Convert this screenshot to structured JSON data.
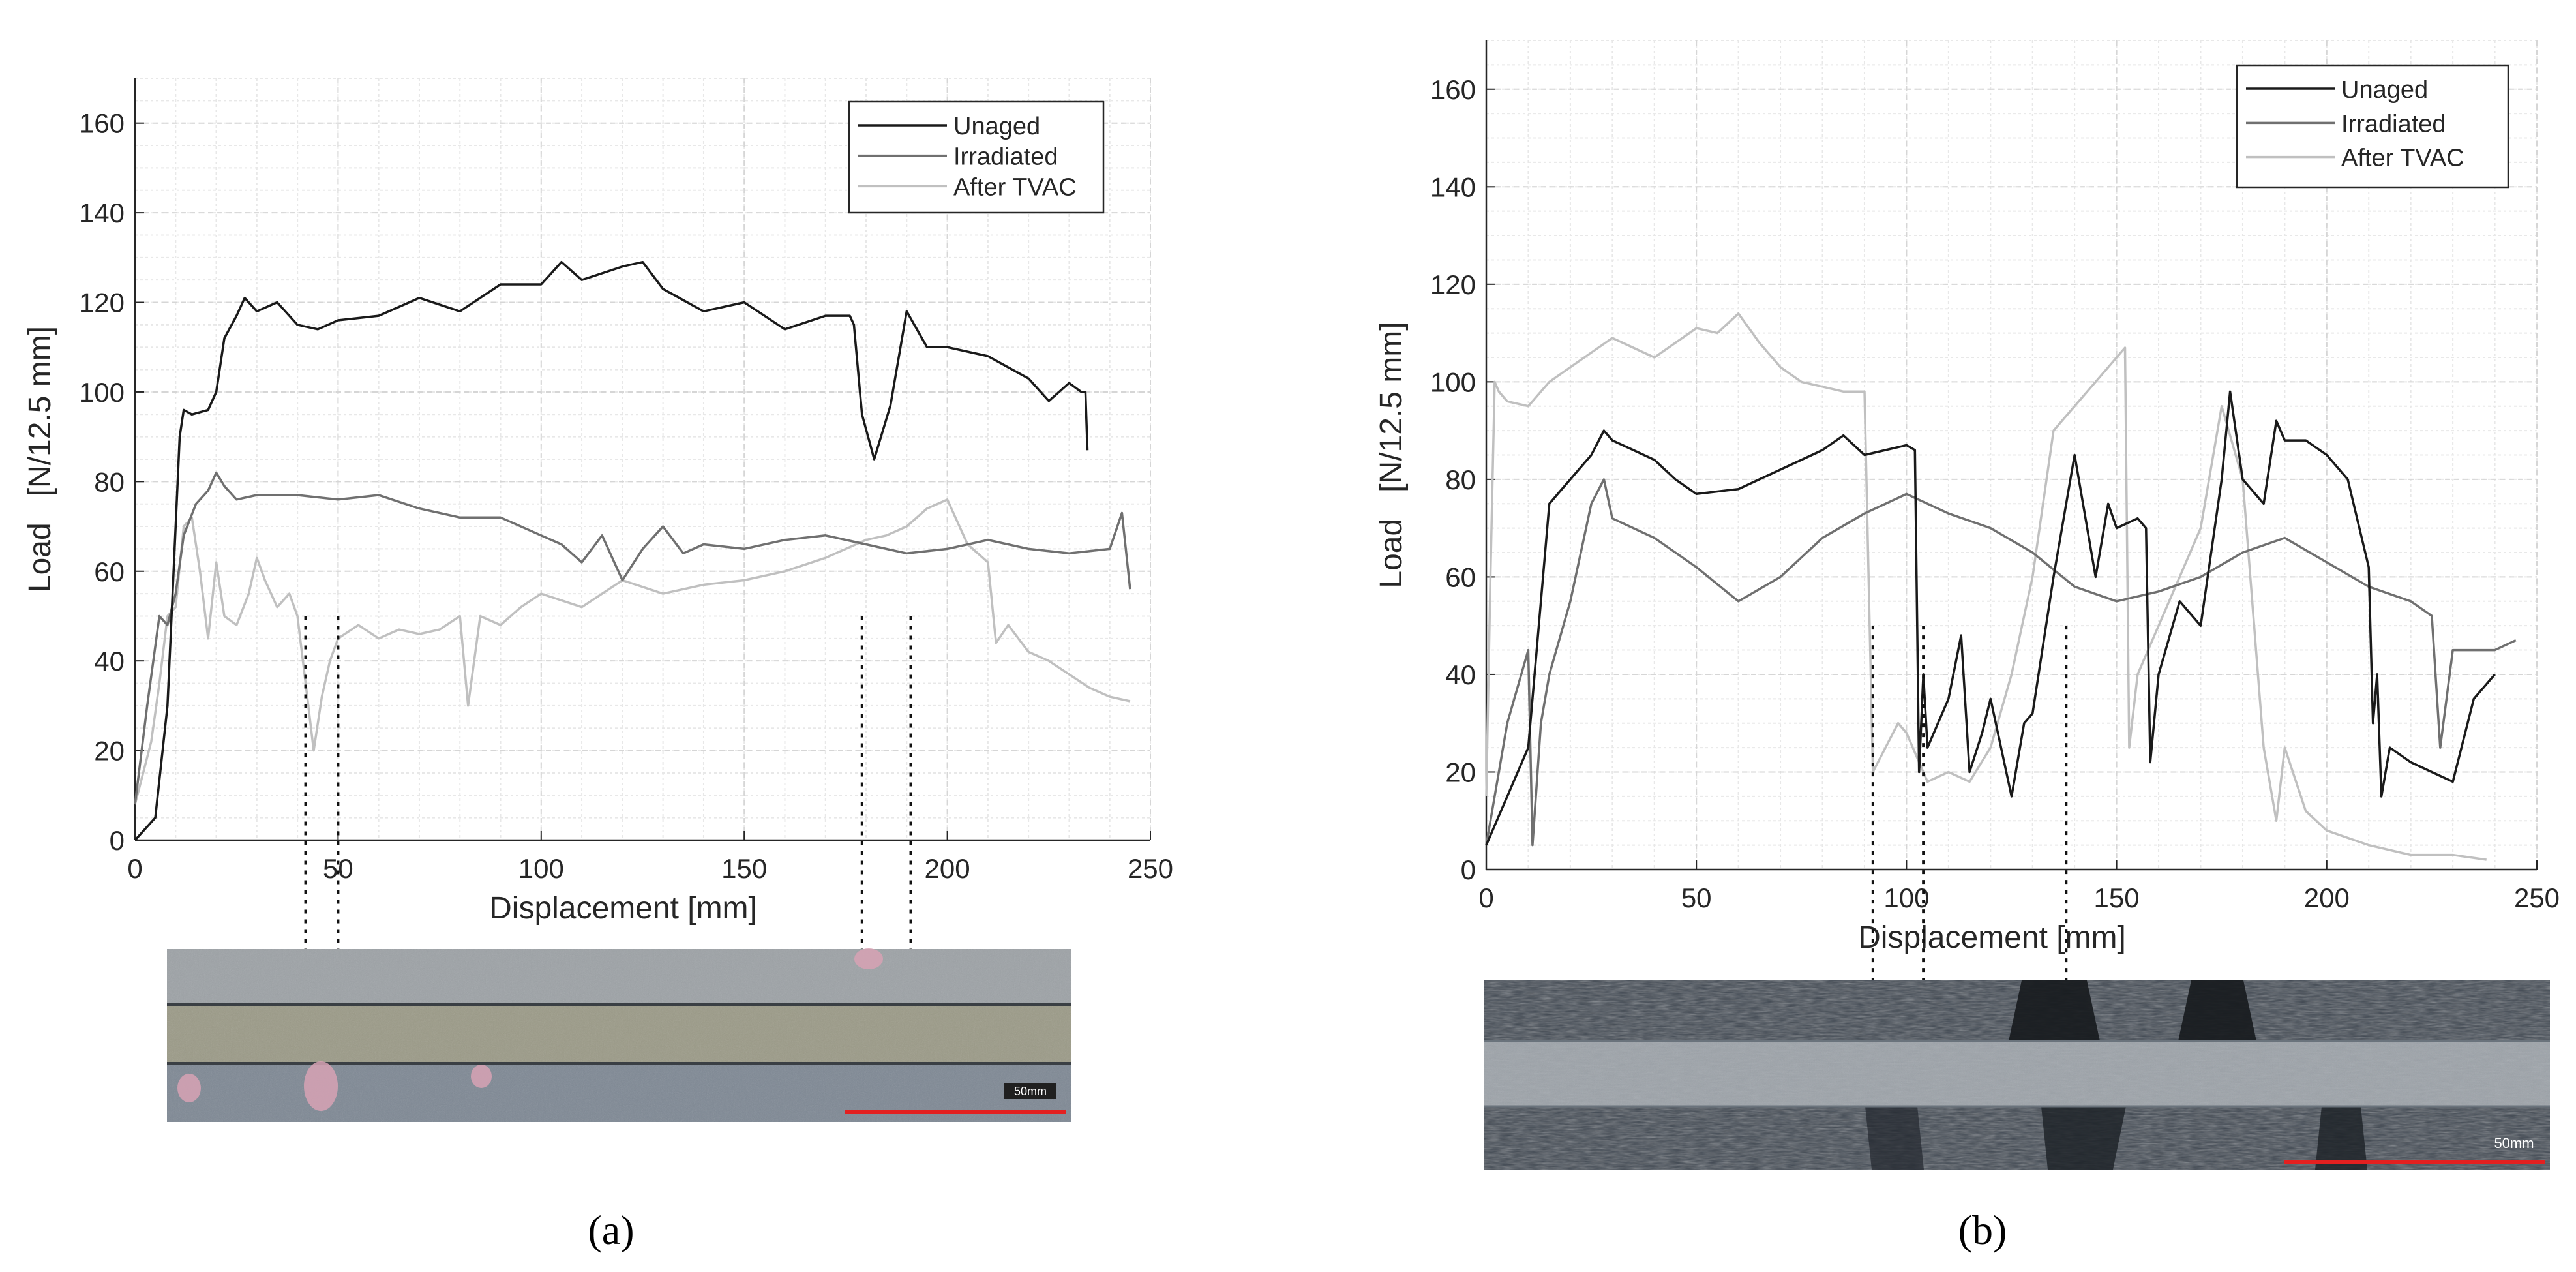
{
  "figure": {
    "panels": [
      {
        "caption": "(a)",
        "scale_label": "50mm",
        "chart_data": {
          "type": "line",
          "xlabel": "Displacement [mm]",
          "ylabel": "Load   [N/12.5 mm]",
          "xlim": [
            0,
            250
          ],
          "ylim": [
            0,
            170
          ],
          "xticks": [
            0,
            50,
            100,
            150,
            200,
            250
          ],
          "yticks": [
            0,
            20,
            40,
            60,
            80,
            100,
            120,
            140,
            160
          ],
          "grid": true,
          "legend_position": "top-right",
          "series": [
            {
              "name": "Unaged",
              "color": "#1a1a1a",
              "x": [
                0,
                5,
                8,
                10,
                11,
                12,
                14,
                18,
                20,
                22,
                25,
                27,
                30,
                35,
                40,
                45,
                50,
                60,
                70,
                80,
                90,
                100,
                105,
                110,
                120,
                125,
                130,
                140,
                150,
                160,
                170,
                176,
                177,
                179,
                182,
                186,
                190,
                195,
                200,
                210,
                220,
                225,
                230,
                233,
                234,
                234.5
              ],
              "y": [
                0,
                5,
                30,
                70,
                90,
                96,
                95,
                96,
                100,
                112,
                117,
                121,
                118,
                120,
                115,
                114,
                116,
                117,
                121,
                118,
                124,
                124,
                129,
                125,
                128,
                129,
                123,
                118,
                120,
                114,
                117,
                117,
                115,
                95,
                85,
                97,
                118,
                110,
                110,
                108,
                103,
                98,
                102,
                100,
                100,
                87
              ]
            },
            {
              "name": "Irradiated",
              "color": "#707070",
              "x": [
                0,
                3,
                6,
                8,
                10,
                12,
                15,
                18,
                20,
                22,
                25,
                30,
                40,
                50,
                60,
                70,
                80,
                90,
                100,
                105,
                110,
                115,
                120,
                125,
                130,
                135,
                140,
                150,
                160,
                170,
                180,
                190,
                200,
                210,
                220,
                230,
                240,
                243,
                245
              ],
              "y": [
                8,
                30,
                50,
                48,
                55,
                68,
                75,
                78,
                82,
                79,
                76,
                77,
                77,
                76,
                77,
                74,
                72,
                72,
                68,
                66,
                62,
                68,
                58,
                65,
                70,
                64,
                66,
                65,
                67,
                68,
                66,
                64,
                65,
                67,
                65,
                64,
                65,
                73,
                56
              ]
            },
            {
              "name": "After TVAC",
              "color": "#c0c0c0",
              "x": [
                0,
                2,
                4,
                6,
                8,
                10,
                12,
                14,
                16,
                18,
                20,
                22,
                25,
                28,
                30,
                32,
                35,
                38,
                40,
                42,
                44,
                46,
                48,
                50,
                55,
                60,
                65,
                70,
                75,
                80,
                82,
                85,
                90,
                95,
                100,
                110,
                120,
                130,
                140,
                150,
                160,
                170,
                180,
                185,
                190,
                195,
                200,
                205,
                210,
                212,
                215,
                220,
                225,
                230,
                235,
                240,
                245
              ],
              "y": [
                8,
                15,
                22,
                35,
                50,
                52,
                70,
                72,
                60,
                45,
                62,
                50,
                48,
                55,
                63,
                58,
                52,
                55,
                50,
                35,
                20,
                32,
                40,
                45,
                48,
                45,
                47,
                46,
                47,
                50,
                30,
                50,
                48,
                52,
                55,
                52,
                58,
                55,
                57,
                58,
                60,
                63,
                67,
                68,
                70,
                74,
                76,
                66,
                62,
                44,
                48,
                42,
                40,
                37,
                34,
                32,
                31
              ]
            }
          ],
          "annotation_lines_x": [
            42,
            50,
            179,
            191
          ]
        }
      },
      {
        "caption": "(b)",
        "scale_label": "50mm",
        "chart_data": {
          "type": "line",
          "xlabel": "Displacement [mm]",
          "ylabel": "Load   [N/12.5 mm]",
          "xlim": [
            0,
            250
          ],
          "ylim": [
            0,
            170
          ],
          "xticks": [
            0,
            50,
            100,
            150,
            200,
            250
          ],
          "yticks": [
            0,
            20,
            40,
            60,
            80,
            100,
            120,
            140,
            160
          ],
          "grid": true,
          "legend_position": "top-right",
          "series": [
            {
              "name": "Unaged",
              "color": "#1a1a1a",
              "x": [
                0,
                5,
                10,
                15,
                18,
                20,
                25,
                28,
                30,
                35,
                40,
                45,
                50,
                60,
                70,
                80,
                85,
                90,
                95,
                100,
                102,
                103,
                104,
                105,
                110,
                113,
                115,
                118,
                120,
                125,
                128,
                130,
                135,
                140,
                145,
                148,
                150,
                155,
                157,
                158,
                160,
                165,
                170,
                175,
                177,
                180,
                185,
                188,
                190,
                195,
                200,
                205,
                210,
                211,
                212,
                213,
                215,
                220,
                225,
                230,
                235,
                240
              ],
              "y": [
                5,
                15,
                25,
                75,
                78,
                80,
                85,
                90,
                88,
                86,
                84,
                80,
                77,
                78,
                82,
                86,
                89,
                85,
                86,
                87,
                86,
                20,
                40,
                25,
                35,
                48,
                20,
                28,
                35,
                15,
                30,
                32,
                60,
                85,
                60,
                75,
                70,
                72,
                70,
                22,
                40,
                55,
                50,
                80,
                98,
                80,
                75,
                92,
                88,
                88,
                85,
                80,
                62,
                30,
                40,
                15,
                25,
                22,
                20,
                18,
                35,
                40
              ]
            },
            {
              "name": "Irradiated",
              "color": "#707070",
              "x": [
                0,
                5,
                10,
                11,
                13,
                15,
                20,
                25,
                28,
                30,
                40,
                50,
                60,
                70,
                80,
                90,
                100,
                110,
                120,
                130,
                140,
                150,
                160,
                170,
                180,
                190,
                200,
                210,
                220,
                225,
                227,
                230,
                240,
                245
              ],
              "y": [
                5,
                30,
                45,
                5,
                30,
                40,
                55,
                75,
                80,
                72,
                68,
                62,
                55,
                60,
                68,
                73,
                77,
                73,
                70,
                65,
                58,
                55,
                57,
                60,
                65,
                68,
                63,
                58,
                55,
                52,
                25,
                45,
                45,
                47
              ]
            },
            {
              "name": "After TVAC",
              "color": "#c0c0c0",
              "x": [
                0,
                1,
                2,
                3,
                5,
                10,
                15,
                20,
                25,
                30,
                40,
                50,
                55,
                60,
                65,
                70,
                75,
                80,
                85,
                90,
                92,
                95,
                98,
                100,
                105,
                110,
                115,
                120,
                125,
                130,
                135,
                140,
                145,
                150,
                152,
                153,
                155,
                160,
                165,
                170,
                175,
                180,
                185,
                188,
                190,
                195,
                200,
                210,
                220,
                230,
                238
              ],
              "y": [
                15,
                60,
                100,
                98,
                96,
                95,
                100,
                103,
                106,
                109,
                105,
                111,
                110,
                114,
                108,
                103,
                100,
                99,
                98,
                98,
                20,
                25,
                30,
                28,
                18,
                20,
                18,
                25,
                40,
                60,
                90,
                95,
                100,
                105,
                107,
                25,
                40,
                50,
                60,
                70,
                95,
                80,
                25,
                10,
                25,
                12,
                8,
                5,
                3,
                3,
                2
              ]
            }
          ],
          "annotation_lines_x": [
            92,
            104,
            138
          ]
        }
      }
    ]
  }
}
